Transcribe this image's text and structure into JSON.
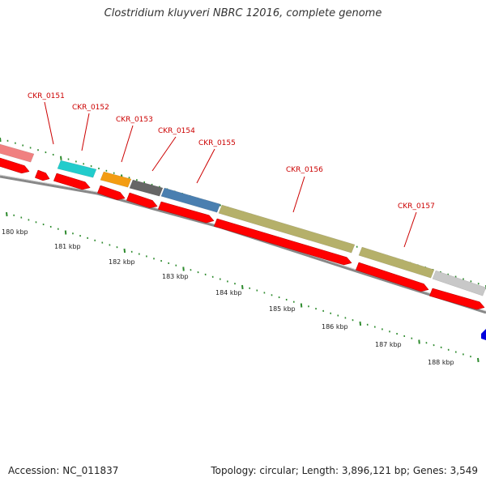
{
  "title": "Clostridium kluyveri NBRC 12016, complete genome",
  "accession": "Accession: NC_011837",
  "summary": "Topology: circular; Length: 3,896,121 bp; Genes: 3,549",
  "gene_labels": [
    "CKR_0151",
    "CKR_0152",
    "CKR_0153",
    "CKR_0154",
    "CKR_0155",
    "CKR_0156",
    "CKR_0157"
  ],
  "kbp_labels": [
    "180 kbp",
    "181 kbp",
    "182 kbp",
    "183 kbp",
    "184 kbp",
    "185 kbp",
    "186 kbp",
    "187 kbp",
    "188 kbp"
  ],
  "colors": {
    "cds": "#ff0000",
    "label": "#cc0000",
    "tick": "#2e8b2e",
    "backbone": "#888888",
    "feature_pink": "#f08080",
    "feature_cyan": "#22cccc",
    "feature_orange": "#f39c12",
    "feature_dark_gray": "#666666",
    "feature_steel_blue": "#4a7fb0",
    "feature_khaki": "#b5b06a",
    "feature_light_gray": "#c8c8c8",
    "feature_blue": "#0000dd"
  }
}
